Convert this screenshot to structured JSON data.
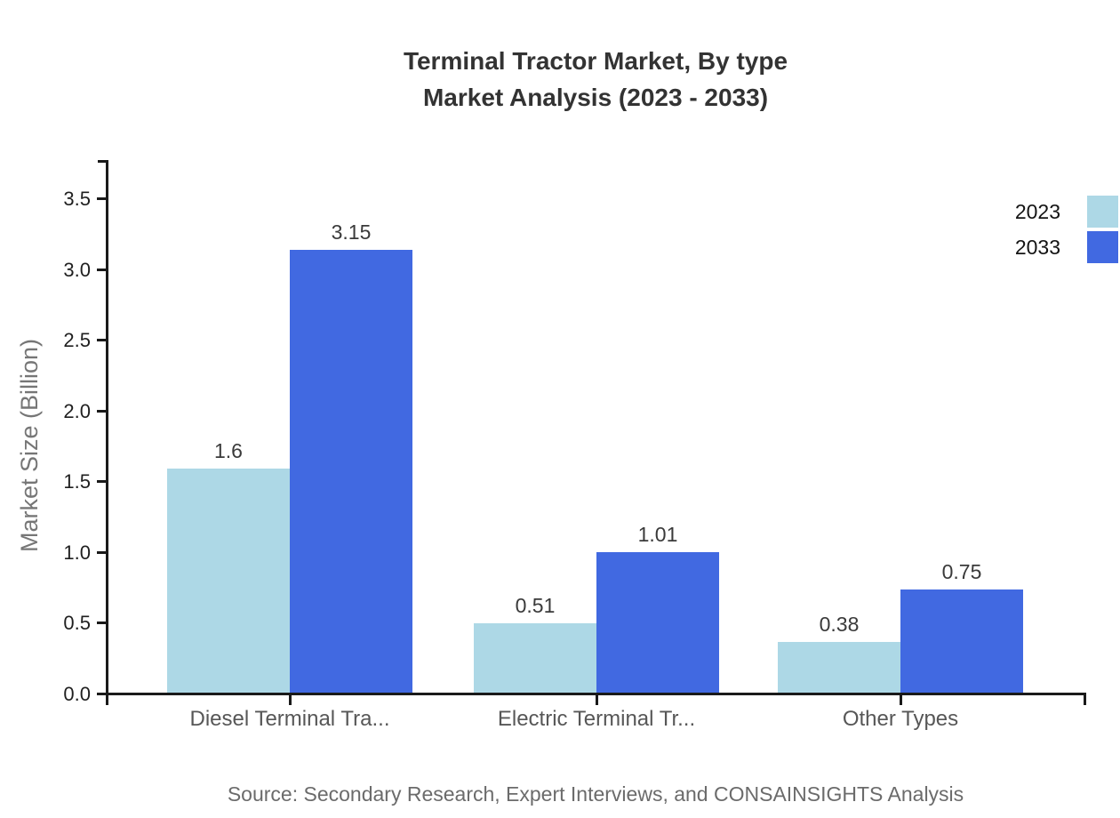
{
  "title": {
    "line1": "Terminal Tractor Market, By type",
    "line2": "Market Analysis (2023 - 2033)"
  },
  "chart_data": {
    "type": "bar",
    "categories": [
      "Diesel Terminal Tra...",
      "Electric Terminal Tr...",
      "Other Types"
    ],
    "series": [
      {
        "name": "2023",
        "color": "#ADD8E6",
        "values": [
          1.6,
          0.51,
          0.38
        ],
        "value_labels": [
          "1.6",
          "0.51",
          "0.38"
        ]
      },
      {
        "name": "2033",
        "color": "#4169E1",
        "values": [
          3.15,
          1.01,
          0.75
        ],
        "value_labels": [
          "3.15",
          "1.01",
          "0.75"
        ]
      }
    ],
    "title": "Terminal Tractor Market, By type Market Analysis (2023 - 2033)",
    "xlabel": "",
    "ylabel": "Market Size (Billion)",
    "ylim": [
      0,
      3.5
    ],
    "y_ticks": [
      0.0,
      0.5,
      1.0,
      1.5,
      2.0,
      2.5,
      3.0,
      3.5
    ],
    "y_tick_labels": [
      "0.0",
      "0.5",
      "1.0",
      "1.5",
      "2.0",
      "2.5",
      "3.0",
      "3.5"
    ],
    "grid": false,
    "legend_position": "top-right",
    "bar_value_labels_shown": true
  },
  "legend": {
    "items": [
      {
        "label": "2023",
        "color": "#ADD8E6"
      },
      {
        "label": "2033",
        "color": "#4169E1"
      }
    ]
  },
  "source": "Source: Secondary Research, Expert Interviews, and CONSAINSIGHTS Analysis",
  "colors": {
    "series_2023": "#ADD8E6",
    "series_2033": "#4169E1",
    "axis": "#1a1a1a",
    "title_text": "#333333",
    "category_text": "#575757",
    "axis_label_text": "#767676",
    "source_text": "#6b6b6b"
  }
}
